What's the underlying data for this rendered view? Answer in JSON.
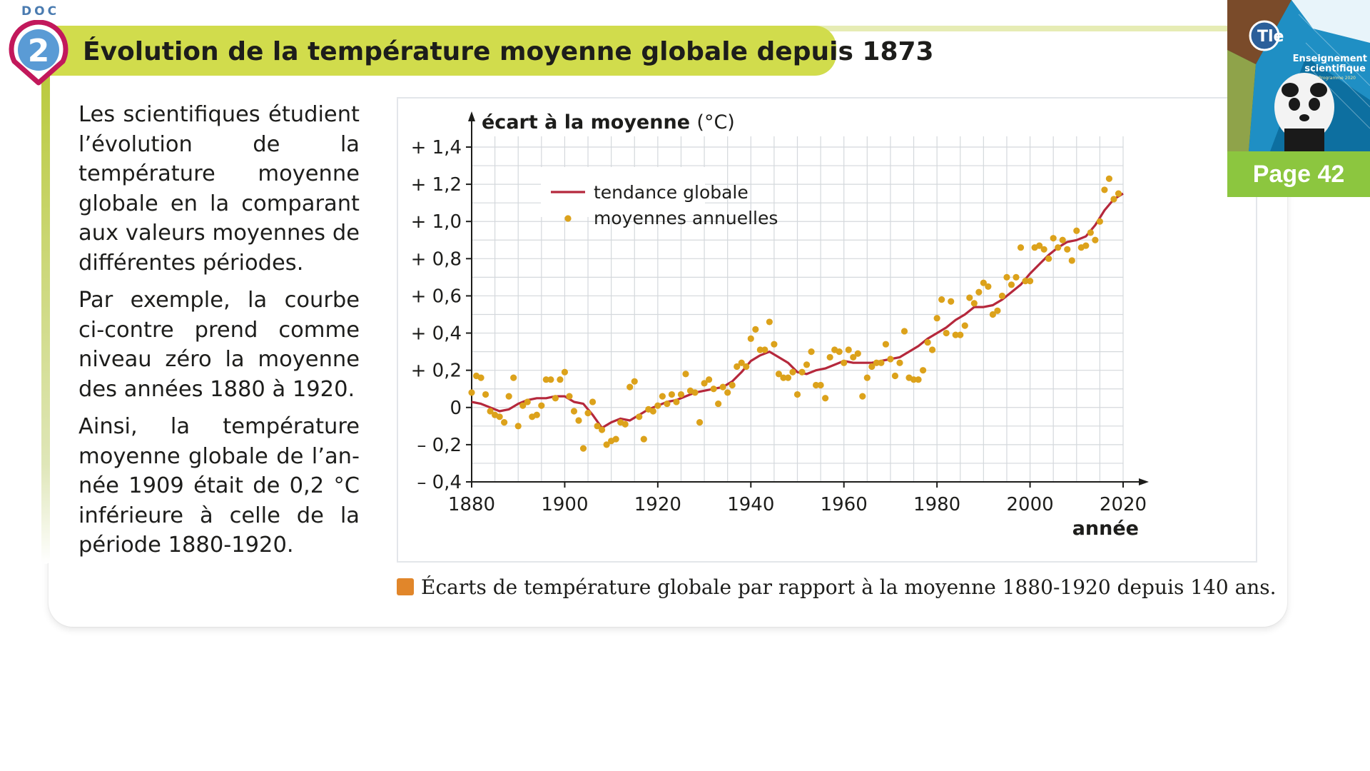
{
  "document": {
    "doc_label": "DOC",
    "doc_number": "2",
    "title": "Évolution de la température moyenne globale depuis 1873"
  },
  "body": {
    "paragraphs": [
      "Les scientifiques étudient l’évolution de la tempéra­ture moyenne globale en la comparant aux valeurs moyennes de différentes périodes.",
      "Par exemple, la courbe ci-contre prend comme niveau zéro la moyenne des années 1880 à 1920.",
      "Ainsi, la température moyenne globale de l’an­née 1909 était de 0,2 °C inférieure à celle de la période 1880-1920."
    ]
  },
  "caption": "Écarts de température globale par rapport à la moyenne 1880-1920 depuis 140 ans.",
  "thumbnail": {
    "level": "Tle",
    "book_title_line1": "Enseignement",
    "book_title_line2": "scientifique",
    "book_subtitle": "Programme 2020",
    "page_label": "Page 42"
  },
  "colors": {
    "title_band": "#d1dc4c",
    "badge_ring": "#c2185b",
    "badge_fill": "#5a9bd5",
    "trend_line": "#b5283c",
    "annual_points": "#dca21b",
    "caption_square": "#e1862a",
    "page_badge": "#8cc63f"
  },
  "chart_data": {
    "type": "scatter",
    "title": "",
    "ylabel_bold": "écart à la moyenne",
    "ylabel_unit": "(°C)",
    "xlabel": "année",
    "xlim": [
      1880,
      2020
    ],
    "ylim": [
      -0.4,
      1.4
    ],
    "x_ticks": [
      1880,
      1900,
      1920,
      1940,
      1960,
      1980,
      2000,
      2020
    ],
    "y_ticks": [
      {
        "value": 1.4,
        "label": "+ 1,4"
      },
      {
        "value": 1.2,
        "label": "+ 1,2"
      },
      {
        "value": 1.0,
        "label": "+ 1,0"
      },
      {
        "value": 0.8,
        "label": "+ 0,8"
      },
      {
        "value": 0.6,
        "label": "+ 0,6"
      },
      {
        "value": 0.4,
        "label": "+ 0,4"
      },
      {
        "value": 0.2,
        "label": "+ 0,2"
      },
      {
        "value": 0.0,
        "label": "0"
      },
      {
        "value": -0.2,
        "label": "– 0,2"
      },
      {
        "value": -0.4,
        "label": "– 0,4"
      }
    ],
    "grid": true,
    "legend_position": "top-left",
    "series": [
      {
        "name": "tendance globale",
        "kind": "line",
        "x": [
          1880,
          1882,
          1884,
          1886,
          1888,
          1890,
          1892,
          1894,
          1896,
          1898,
          1900,
          1902,
          1904,
          1906,
          1908,
          1910,
          1912,
          1914,
          1916,
          1918,
          1920,
          1922,
          1924,
          1926,
          1928,
          1930,
          1932,
          1934,
          1936,
          1938,
          1940,
          1942,
          1944,
          1946,
          1948,
          1950,
          1952,
          1954,
          1956,
          1958,
          1960,
          1962,
          1964,
          1966,
          1968,
          1970,
          1972,
          1974,
          1976,
          1978,
          1980,
          1982,
          1984,
          1986,
          1988,
          1990,
          1992,
          1994,
          1996,
          1998,
          2000,
          2002,
          2004,
          2006,
          2008,
          2010,
          2012,
          2014,
          2016,
          2018,
          2020
        ],
        "y": [
          0.03,
          0.02,
          0.0,
          -0.02,
          -0.01,
          0.02,
          0.04,
          0.05,
          0.05,
          0.06,
          0.06,
          0.03,
          0.02,
          -0.04,
          -0.11,
          -0.08,
          -0.06,
          -0.07,
          -0.04,
          -0.01,
          0.01,
          0.03,
          0.04,
          0.06,
          0.08,
          0.09,
          0.1,
          0.11,
          0.14,
          0.19,
          0.25,
          0.28,
          0.3,
          0.27,
          0.24,
          0.19,
          0.18,
          0.2,
          0.21,
          0.23,
          0.25,
          0.24,
          0.24,
          0.24,
          0.25,
          0.26,
          0.27,
          0.3,
          0.33,
          0.37,
          0.4,
          0.43,
          0.47,
          0.5,
          0.54,
          0.54,
          0.55,
          0.58,
          0.62,
          0.66,
          0.72,
          0.77,
          0.82,
          0.86,
          0.89,
          0.9,
          0.92,
          0.98,
          1.06,
          1.12,
          1.15
        ]
      },
      {
        "name": "moyennes annuelles",
        "kind": "scatter",
        "x": [
          1880,
          1881,
          1882,
          1883,
          1884,
          1885,
          1886,
          1887,
          1888,
          1889,
          1890,
          1891,
          1892,
          1893,
          1894,
          1895,
          1896,
          1897,
          1898,
          1899,
          1900,
          1901,
          1902,
          1903,
          1904,
          1905,
          1906,
          1907,
          1908,
          1909,
          1910,
          1911,
          1912,
          1913,
          1914,
          1915,
          1916,
          1917,
          1918,
          1919,
          1920,
          1921,
          1922,
          1923,
          1924,
          1925,
          1926,
          1927,
          1928,
          1929,
          1930,
          1931,
          1932,
          1933,
          1934,
          1935,
          1936,
          1937,
          1938,
          1939,
          1940,
          1941,
          1942,
          1943,
          1944,
          1945,
          1946,
          1947,
          1948,
          1949,
          1950,
          1951,
          1952,
          1953,
          1954,
          1955,
          1956,
          1957,
          1958,
          1959,
          1960,
          1961,
          1962,
          1963,
          1964,
          1965,
          1966,
          1967,
          1968,
          1969,
          1970,
          1971,
          1972,
          1973,
          1974,
          1975,
          1976,
          1977,
          1978,
          1979,
          1980,
          1981,
          1982,
          1983,
          1984,
          1985,
          1986,
          1987,
          1988,
          1989,
          1990,
          1991,
          1992,
          1993,
          1994,
          1995,
          1996,
          1997,
          1998,
          1999,
          2000,
          2001,
          2002,
          2003,
          2004,
          2005,
          2006,
          2007,
          2008,
          2009,
          2010,
          2011,
          2012,
          2013,
          2014,
          2015,
          2016,
          2017,
          2018,
          2019
        ],
        "y": [
          0.08,
          0.17,
          0.16,
          0.07,
          -0.02,
          -0.04,
          -0.05,
          -0.08,
          0.06,
          0.16,
          -0.1,
          0.01,
          0.03,
          -0.05,
          -0.04,
          0.01,
          0.15,
          0.15,
          0.05,
          0.15,
          0.19,
          0.06,
          -0.02,
          -0.07,
          -0.22,
          -0.03,
          0.03,
          -0.1,
          -0.12,
          -0.2,
          -0.18,
          -0.17,
          -0.08,
          -0.09,
          0.11,
          0.14,
          -0.05,
          -0.17,
          -0.01,
          -0.02,
          0.01,
          0.06,
          0.02,
          0.07,
          0.03,
          0.07,
          0.18,
          0.09,
          0.08,
          -0.08,
          0.13,
          0.15,
          0.1,
          0.02,
          0.11,
          0.08,
          0.12,
          0.22,
          0.24,
          0.22,
          0.37,
          0.42,
          0.31,
          0.31,
          0.46,
          0.34,
          0.18,
          0.16,
          0.16,
          0.19,
          0.07,
          0.19,
          0.23,
          0.3,
          0.12,
          0.12,
          0.05,
          0.27,
          0.31,
          0.3,
          0.24,
          0.31,
          0.27,
          0.29,
          0.06,
          0.16,
          0.22,
          0.24,
          0.24,
          0.34,
          0.26,
          0.17,
          0.24,
          0.41,
          0.16,
          0.15,
          0.15,
          0.2,
          0.35,
          0.31,
          0.48,
          0.58,
          0.4,
          0.57,
          0.39,
          0.39,
          0.44,
          0.59,
          0.56,
          0.62,
          0.67,
          0.65,
          0.5,
          0.52,
          0.6,
          0.7,
          0.66,
          0.7,
          0.86,
          0.68,
          0.68,
          0.86,
          0.87,
          0.85,
          0.8,
          0.91,
          0.86,
          0.9,
          0.85,
          0.79,
          0.95,
          0.86,
          0.87,
          0.94,
          0.9,
          1.0,
          1.17,
          1.23,
          1.12,
          1.15
        ]
      }
    ]
  }
}
